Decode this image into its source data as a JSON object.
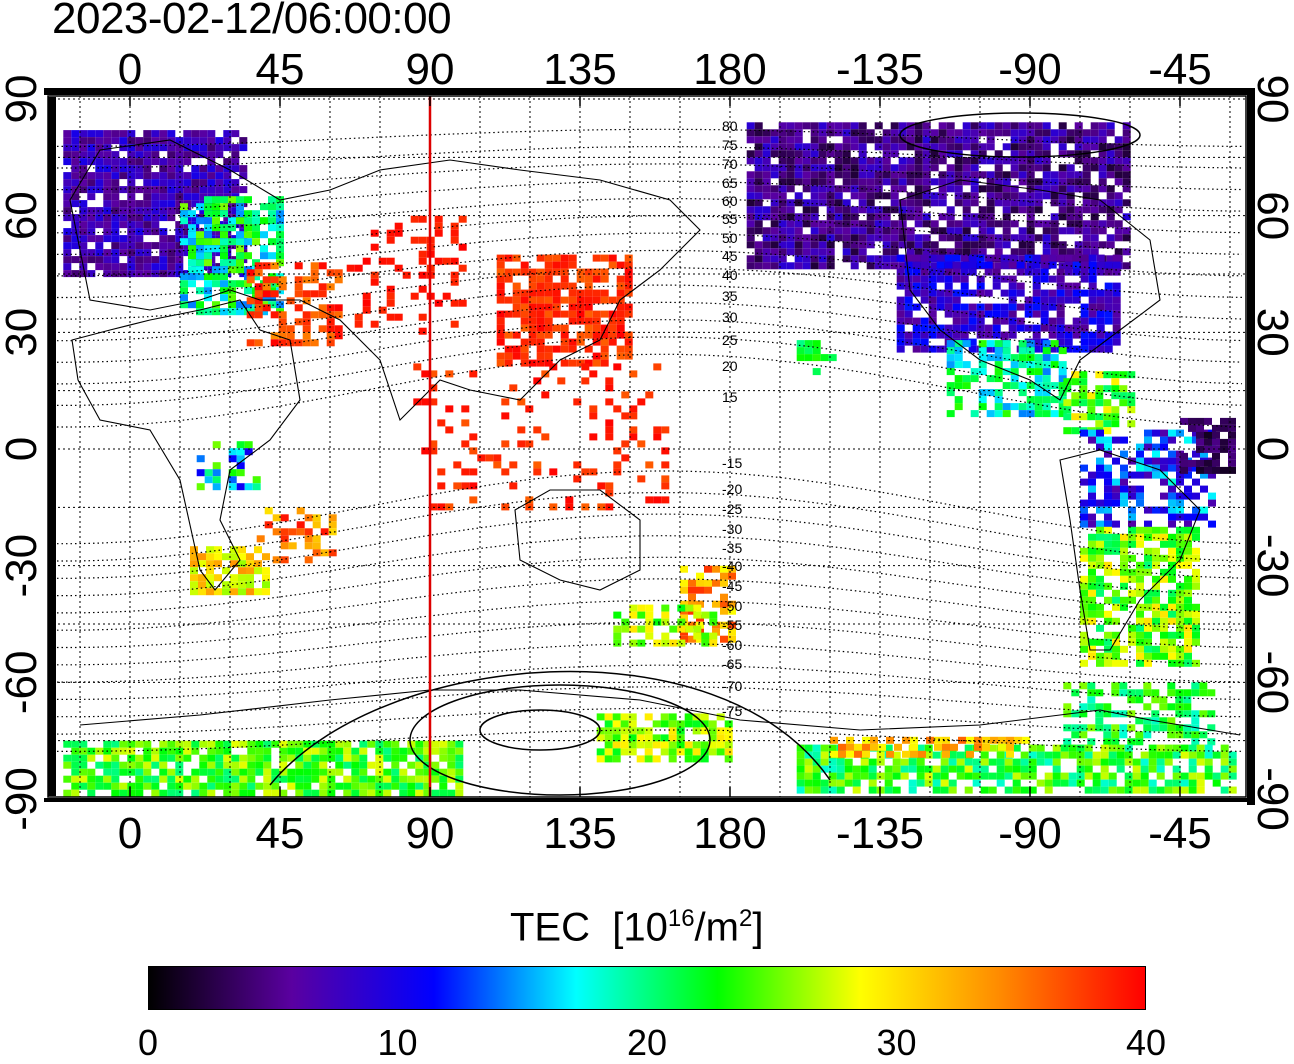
{
  "timestamp": "2023-02-12/06:00:00",
  "map": {
    "top_lon_ticks": [
      "0",
      "45",
      "90",
      "135",
      "180",
      "-135",
      "-90",
      "-45"
    ],
    "bottom_lon_ticks": [
      "0",
      "45",
      "90",
      "135",
      "180",
      "-135",
      "-90",
      "-45"
    ],
    "left_lat_ticks": [
      "90",
      "60",
      "30",
      "0",
      "-30",
      "-60",
      "-90"
    ],
    "right_lat_ticks": [
      "90",
      "60",
      "30",
      "0",
      "-30",
      "-60",
      "-90"
    ],
    "meridian_marker_lon": 90,
    "marker_color": "#dd0000",
    "contour_labels_upper": [
      "80",
      "75",
      "70",
      "65",
      "60",
      "55",
      "50",
      "45",
      "40",
      "35",
      "30",
      "25",
      "20",
      "15"
    ],
    "contour_labels_lower": [
      "-15",
      "-20",
      "-25",
      "-30",
      "-35",
      "-40",
      "-45",
      "-50",
      "-55",
      "-60",
      "-65",
      "-70",
      "-75"
    ]
  },
  "colorbar": {
    "title": "TEC",
    "unit_base": "[10",
    "unit_exp": "16",
    "unit_mid": "/m",
    "unit_exp2": "2",
    "unit_end": "]",
    "min": 0,
    "max": 40,
    "labels": [
      "0",
      "10",
      "20",
      "30",
      "40"
    ],
    "colors": [
      "#000000",
      "#5a00a0",
      "#0000ff",
      "#00ffff",
      "#00ff00",
      "#ffff00",
      "#ff8800",
      "#ff0000"
    ]
  }
}
